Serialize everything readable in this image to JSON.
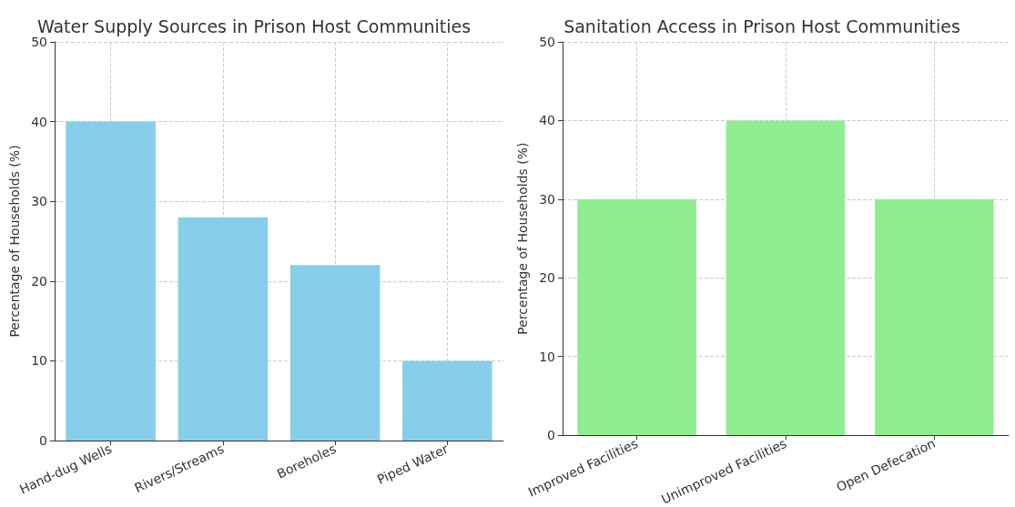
{
  "chart_data": [
    {
      "type": "bar",
      "title": "Water Supply Sources in Prison Host Communities",
      "ylabel": "Percentage of Households (%)",
      "categories": [
        "Hand-dug Wells",
        "Rivers/Streams",
        "Boreholes",
        "Piped Water"
      ],
      "values": [
        40,
        28,
        22,
        10
      ],
      "color": "#87ceeb",
      "ylim": [
        0,
        50
      ],
      "yticks": [
        0,
        10,
        20,
        30,
        40,
        50
      ],
      "grid": true
    },
    {
      "type": "bar",
      "title": "Sanitation Access in Prison Host Communities",
      "ylabel": "Percentage of Households (%)",
      "categories": [
        "Improved Facilities",
        "Unimproved Facilities",
        "Open Defecation"
      ],
      "values": [
        30,
        40,
        30
      ],
      "color": "#90ee90",
      "ylim": [
        0,
        50
      ],
      "yticks": [
        0,
        10,
        20,
        30,
        40,
        50
      ],
      "grid": true
    }
  ]
}
